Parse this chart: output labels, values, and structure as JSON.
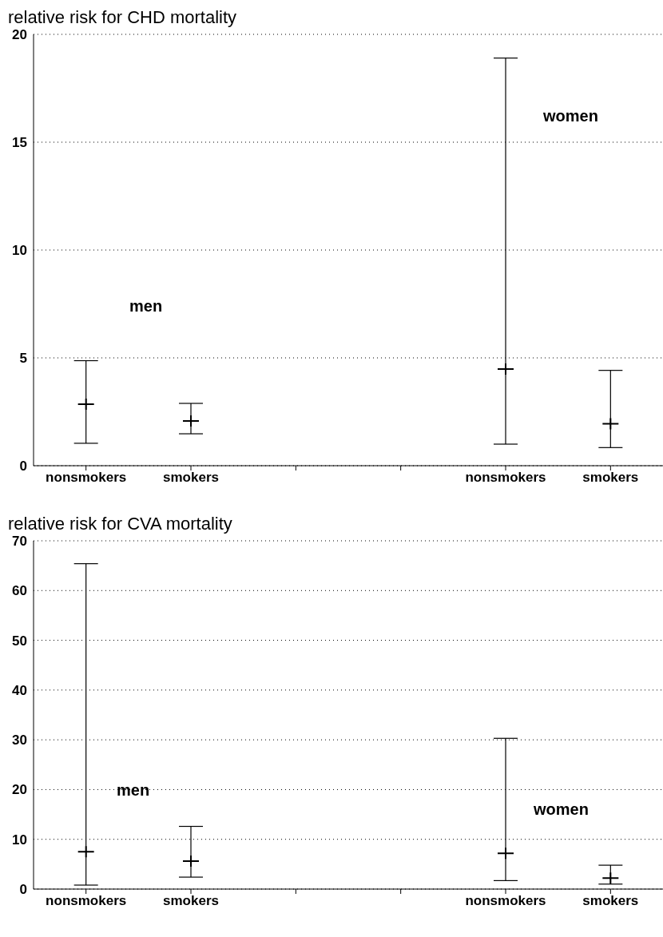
{
  "chart_data": [
    {
      "type": "scatter",
      "title": "relative risk for CHD mortality",
      "categories": [
        "nonsmokers",
        "smokers",
        null,
        null,
        "nonsmokers",
        "smokers"
      ],
      "values": [
        2.85,
        2.07,
        null,
        null,
        4.48,
        1.94
      ],
      "errors": [
        [
          1.04,
          4.87
        ],
        [
          1.48,
          2.89
        ],
        null,
        null,
        [
          1.0,
          18.9
        ],
        [
          0.84,
          4.42
        ]
      ],
      "color": "#000000",
      "marker": "cross",
      "ylim": [
        0,
        20
      ],
      "yticks": [
        0,
        5,
        10,
        15,
        20
      ],
      "grid": "y",
      "annotations": [
        "men",
        "women"
      ]
    },
    {
      "type": "scatter",
      "title": "relative risk for CVA mortality",
      "categories": [
        "nonsmokers",
        "smokers",
        null,
        null,
        "nonsmokers",
        "smokers"
      ],
      "values": [
        7.5,
        5.6,
        null,
        null,
        7.2,
        2.2
      ],
      "errors": [
        [
          0.8,
          65.4
        ],
        [
          2.4,
          12.6
        ],
        null,
        null,
        [
          1.7,
          30.3
        ],
        [
          1.0,
          4.8
        ]
      ],
      "color": "#000000",
      "marker": "cross",
      "ylim": [
        0,
        70
      ],
      "yticks": [
        0,
        10,
        20,
        30,
        40,
        50,
        60,
        70
      ],
      "grid": "y",
      "annotations": [
        "men",
        "women"
      ]
    }
  ]
}
